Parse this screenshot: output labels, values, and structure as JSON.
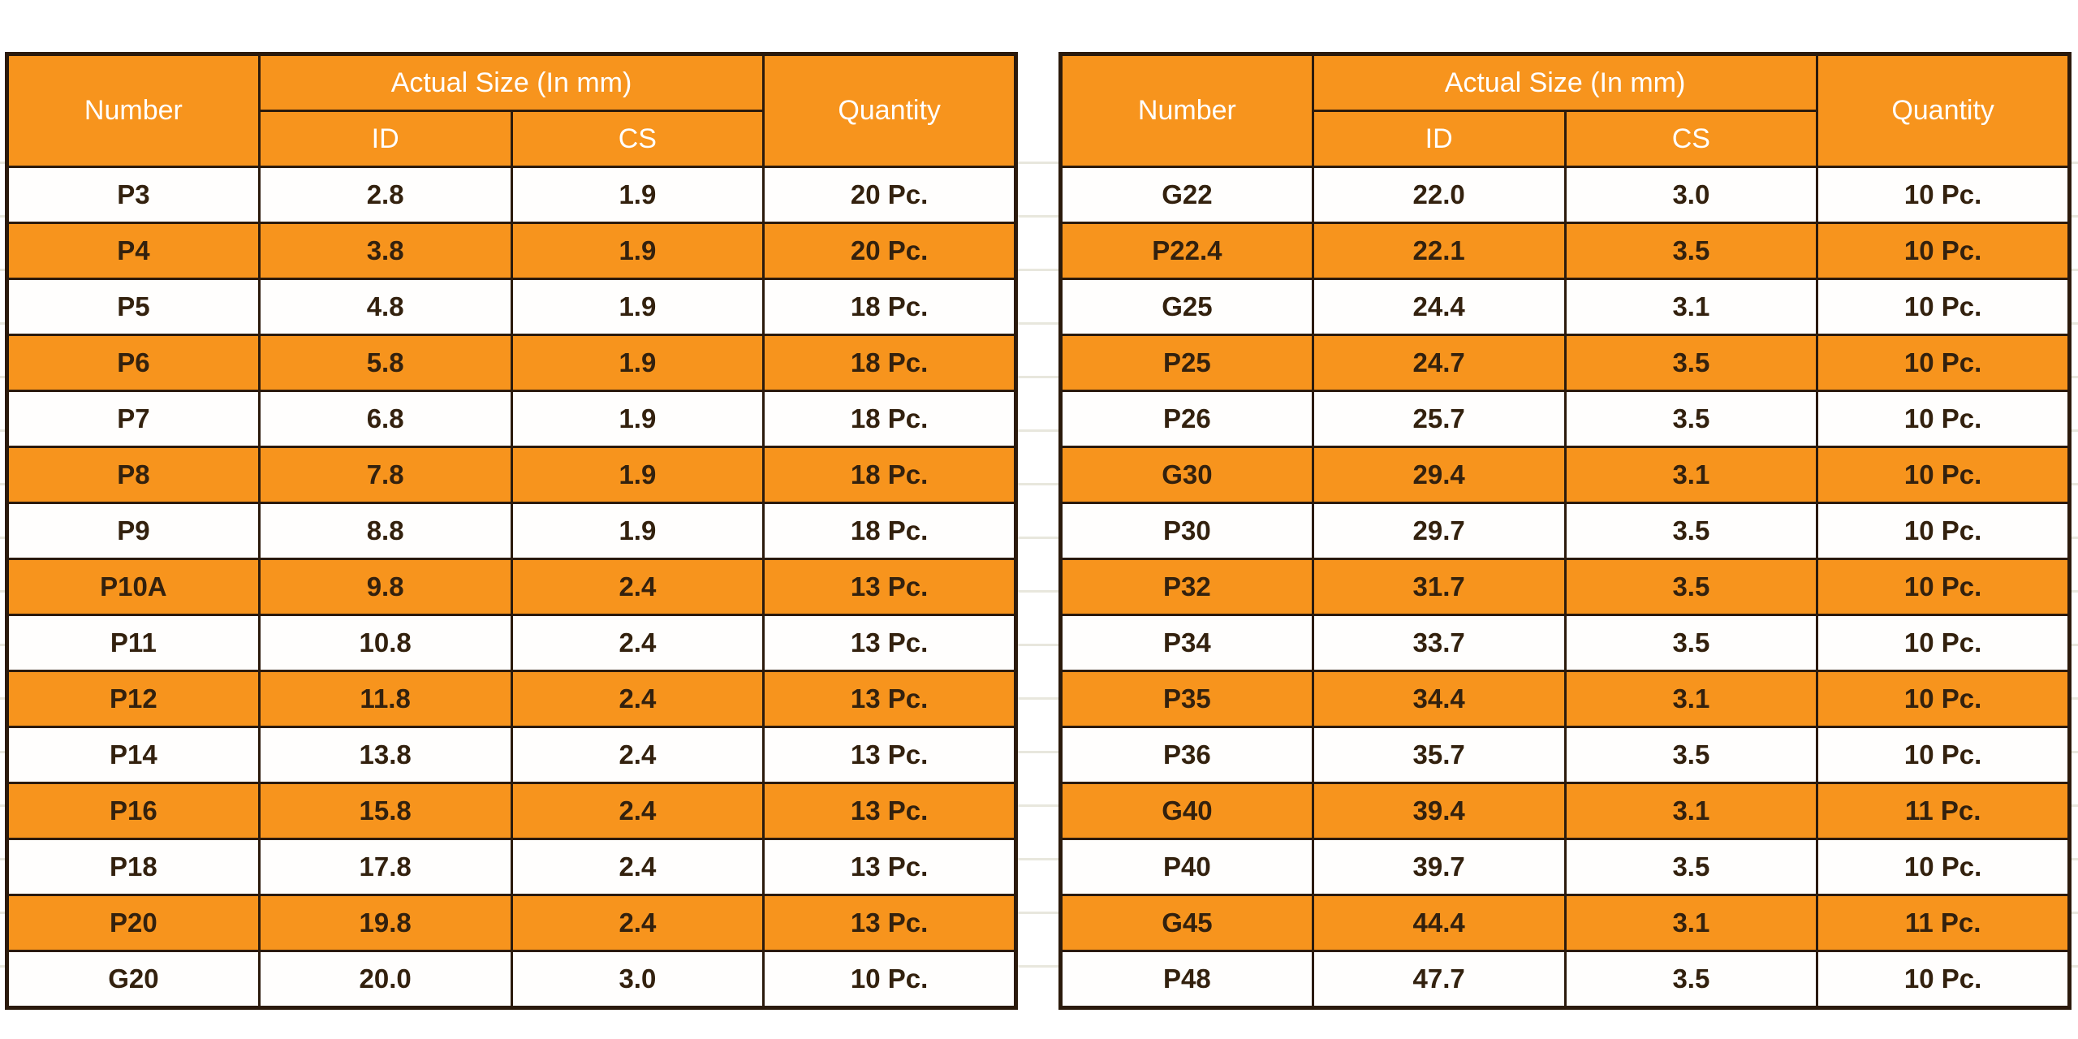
{
  "colors": {
    "orange": "#f7941d",
    "text_dark": "#33210e",
    "border": "#2b1a0c",
    "gridline": "#e8e7dd",
    "header_text": "#ffffff"
  },
  "header": {
    "number": "Number",
    "actual_size": "Actual Size (In mm)",
    "id": "ID",
    "cs": "CS",
    "quantity": "Quantity"
  },
  "left_table": {
    "rows": [
      {
        "number": "P3",
        "id": "2.8",
        "cs": "1.9",
        "qty": "20 Pc."
      },
      {
        "number": "P4",
        "id": "3.8",
        "cs": "1.9",
        "qty": "20 Pc."
      },
      {
        "number": "P5",
        "id": "4.8",
        "cs": "1.9",
        "qty": "18 Pc."
      },
      {
        "number": "P6",
        "id": "5.8",
        "cs": "1.9",
        "qty": "18 Pc."
      },
      {
        "number": "P7",
        "id": "6.8",
        "cs": "1.9",
        "qty": "18 Pc."
      },
      {
        "number": "P8",
        "id": "7.8",
        "cs": "1.9",
        "qty": "18 Pc."
      },
      {
        "number": "P9",
        "id": "8.8",
        "cs": "1.9",
        "qty": "18 Pc."
      },
      {
        "number": "P10A",
        "id": "9.8",
        "cs": "2.4",
        "qty": "13 Pc."
      },
      {
        "number": "P11",
        "id": "10.8",
        "cs": "2.4",
        "qty": "13 Pc."
      },
      {
        "number": "P12",
        "id": "11.8",
        "cs": "2.4",
        "qty": "13 Pc."
      },
      {
        "number": "P14",
        "id": "13.8",
        "cs": "2.4",
        "qty": "13 Pc."
      },
      {
        "number": "P16",
        "id": "15.8",
        "cs": "2.4",
        "qty": "13 Pc."
      },
      {
        "number": "P18",
        "id": "17.8",
        "cs": "2.4",
        "qty": "13 Pc."
      },
      {
        "number": "P20",
        "id": "19.8",
        "cs": "2.4",
        "qty": "13 Pc."
      },
      {
        "number": "G20",
        "id": "20.0",
        "cs": "3.0",
        "qty": "10 Pc."
      }
    ]
  },
  "right_table": {
    "rows": [
      {
        "number": "G22",
        "id": "22.0",
        "cs": "3.0",
        "qty": "10 Pc."
      },
      {
        "number": "P22.4",
        "id": "22.1",
        "cs": "3.5",
        "qty": "10 Pc."
      },
      {
        "number": "G25",
        "id": "24.4",
        "cs": "3.1",
        "qty": "10 Pc."
      },
      {
        "number": "P25",
        "id": "24.7",
        "cs": "3.5",
        "qty": "10 Pc."
      },
      {
        "number": "P26",
        "id": "25.7",
        "cs": "3.5",
        "qty": "10 Pc."
      },
      {
        "number": "G30",
        "id": "29.4",
        "cs": "3.1",
        "qty": "10 Pc."
      },
      {
        "number": "P30",
        "id": "29.7",
        "cs": "3.5",
        "qty": "10 Pc."
      },
      {
        "number": "P32",
        "id": "31.7",
        "cs": "3.5",
        "qty": "10 Pc."
      },
      {
        "number": "P34",
        "id": "33.7",
        "cs": "3.5",
        "qty": "10 Pc."
      },
      {
        "number": "P35",
        "id": "34.4",
        "cs": "3.1",
        "qty": "10 Pc."
      },
      {
        "number": "P36",
        "id": "35.7",
        "cs": "3.5",
        "qty": "10 Pc."
      },
      {
        "number": "G40",
        "id": "39.4",
        "cs": "3.1",
        "qty": "11 Pc."
      },
      {
        "number": "P40",
        "id": "39.7",
        "cs": "3.5",
        "qty": "10 Pc."
      },
      {
        "number": "G45",
        "id": "44.4",
        "cs": "3.1",
        "qty": "11 Pc."
      },
      {
        "number": "P48",
        "id": "47.7",
        "cs": "3.5",
        "qty": "10 Pc."
      }
    ]
  }
}
